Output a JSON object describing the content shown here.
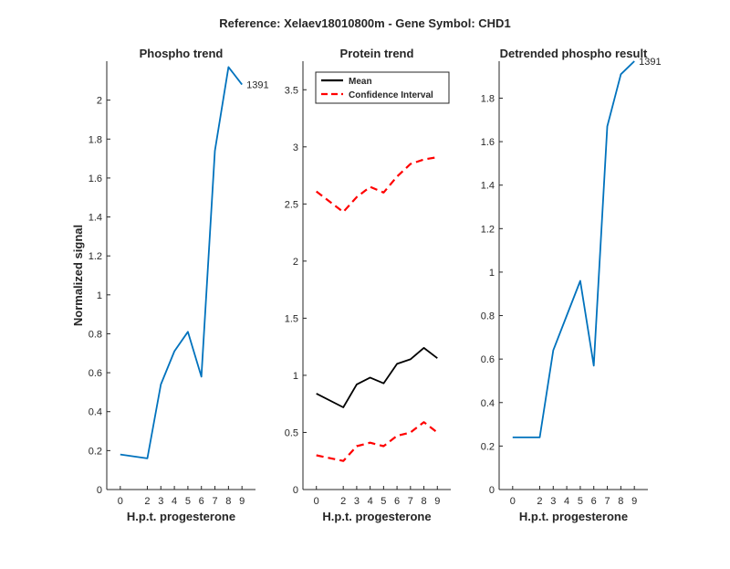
{
  "figure_title": "Reference:  Xelaev18010800m - Gene Symbol:  CHD1",
  "chart_data": [
    {
      "id": "phospho",
      "type": "line",
      "title": "Phospho trend",
      "xlabel": "H.p.t. progesterone",
      "ylabel": "Normalized signal",
      "x": [
        0,
        2,
        3,
        4,
        5,
        6,
        7,
        8,
        9
      ],
      "xlim": [
        -1,
        10
      ],
      "ylim": [
        0,
        2.2
      ],
      "xticks": [
        0,
        2,
        3,
        4,
        5,
        6,
        7,
        8,
        9
      ],
      "yticks": [
        0,
        0.2,
        0.4,
        0.6,
        0.8,
        1,
        1.2,
        1.4,
        1.6,
        1.8,
        2
      ],
      "ytick_labels": [
        "0",
        "0.2",
        "0.4",
        "0.6",
        "0.8",
        "1",
        "1.2",
        "1.4",
        "1.6",
        "1.8",
        "2"
      ],
      "series": [
        {
          "name": "1391",
          "color": "#0072bd",
          "dash": "solid",
          "values": [
            0.18,
            0.16,
            0.54,
            0.71,
            0.81,
            0.58,
            1.74,
            2.17,
            2.08
          ]
        }
      ],
      "annotations": [
        {
          "text": "1391",
          "x": 9,
          "y": 2.08
        }
      ]
    },
    {
      "id": "protein",
      "type": "line",
      "title": "Protein trend",
      "xlabel": "H.p.t. progesterone",
      "ylabel": "",
      "x": [
        0,
        2,
        3,
        4,
        5,
        6,
        7,
        8,
        9
      ],
      "xlim": [
        -1,
        10
      ],
      "ylim": [
        0,
        3.75
      ],
      "xticks": [
        0,
        2,
        3,
        4,
        5,
        6,
        7,
        8,
        9
      ],
      "yticks": [
        0,
        0.5,
        1,
        1.5,
        2,
        2.5,
        3,
        3.5
      ],
      "ytick_labels": [
        "0",
        "0.5",
        "1",
        "1.5",
        "2",
        "2.5",
        "3",
        "3.5"
      ],
      "series": [
        {
          "name": "Mean",
          "color": "#000000",
          "dash": "solid",
          "values": [
            0.84,
            0.72,
            0.92,
            0.98,
            0.93,
            1.1,
            1.14,
            1.24,
            1.15
          ]
        },
        {
          "name": "Confidence Interval",
          "color": "#ff0000",
          "dash": "dashed",
          "values": [
            2.61,
            2.43,
            2.56,
            2.65,
            2.6,
            2.74,
            2.85,
            2.89,
            2.91
          ]
        },
        {
          "name": "Confidence Interval (lower)",
          "color": "#ff0000",
          "dash": "dashed",
          "values": [
            0.3,
            0.25,
            0.38,
            0.41,
            0.38,
            0.47,
            0.5,
            0.59,
            0.5
          ]
        }
      ],
      "legend": {
        "placement": "top-left",
        "entries": [
          {
            "label": "Mean",
            "color": "#000000",
            "dash": "solid"
          },
          {
            "label": "Confidence Interval",
            "color": "#ff0000",
            "dash": "dashed"
          }
        ]
      }
    },
    {
      "id": "detrended",
      "type": "line",
      "title": "Detrended phospho result",
      "xlabel": "H.p.t. progesterone",
      "ylabel": "",
      "x": [
        0,
        2,
        3,
        4,
        5,
        6,
        7,
        8,
        9
      ],
      "xlim": [
        -1,
        10
      ],
      "ylim": [
        0,
        1.97
      ],
      "xticks": [
        0,
        2,
        3,
        4,
        5,
        6,
        7,
        8,
        9
      ],
      "yticks": [
        0,
        0.2,
        0.4,
        0.6,
        0.8,
        1,
        1.2,
        1.4,
        1.6,
        1.8
      ],
      "ytick_labels": [
        "0",
        "0.2",
        "0.4",
        "0.6",
        "0.8",
        "1",
        "1.2",
        "1.4",
        "1.6",
        "1.8"
      ],
      "series": [
        {
          "name": "1391",
          "color": "#0072bd",
          "dash": "solid",
          "values": [
            0.24,
            0.24,
            0.64,
            0.8,
            0.96,
            0.57,
            1.67,
            1.91,
            1.97
          ]
        }
      ],
      "annotations": [
        {
          "text": "1391",
          "x": 9,
          "y": 1.97
        }
      ]
    }
  ]
}
